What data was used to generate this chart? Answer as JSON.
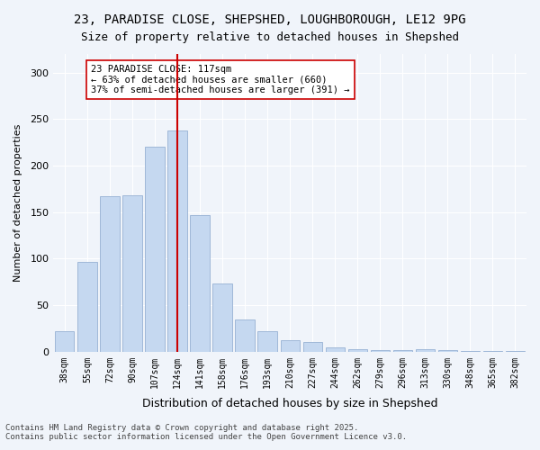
{
  "title_line1": "23, PARADISE CLOSE, SHEPSHED, LOUGHBOROUGH, LE12 9PG",
  "title_line2": "Size of property relative to detached houses in Shepshed",
  "xlabel": "Distribution of detached houses by size in Shepshed",
  "ylabel": "Number of detached properties",
  "categories": [
    "38sqm",
    "55sqm",
    "72sqm",
    "90sqm",
    "107sqm",
    "124sqm",
    "141sqm",
    "158sqm",
    "176sqm",
    "193sqm",
    "210sqm",
    "227sqm",
    "244sqm",
    "262sqm",
    "279sqm",
    "296sqm",
    "313sqm",
    "330sqm",
    "348sqm",
    "365sqm",
    "382sqm"
  ],
  "values": [
    22,
    97,
    167,
    168,
    220,
    238,
    147,
    73,
    35,
    22,
    12,
    10,
    5,
    3,
    2,
    2,
    3,
    2,
    1,
    1,
    1
  ],
  "bar_color": "#c5d8f0",
  "bar_edge_color": "#a0b8d8",
  "vline_x": 5,
  "vline_color": "#cc0000",
  "annotation_text": "23 PARADISE CLOSE: 117sqm\n← 63% of detached houses are smaller (660)\n37% of semi-detached houses are larger (391) →",
  "annotation_box_color": "#ffffff",
  "annotation_box_edge": "#cc0000",
  "background_color": "#f0f4fa",
  "grid_color": "#ffffff",
  "ylim": [
    0,
    320
  ],
  "yticks": [
    0,
    50,
    100,
    150,
    200,
    250,
    300
  ],
  "footnote_line1": "Contains HM Land Registry data © Crown copyright and database right 2025.",
  "footnote_line2": "Contains public sector information licensed under the Open Government Licence v3.0."
}
